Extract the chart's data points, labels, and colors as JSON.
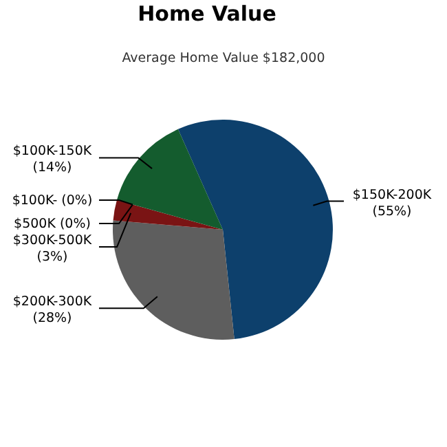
{
  "chart_data": {
    "type": "pie",
    "title": "Home Value",
    "subtitle": "Average Home Value  $182,000",
    "categories": [
      "$150K-200K",
      "$200K-300K",
      "$300K-500K",
      "$500K",
      "$100K-",
      "$100K-150K"
    ],
    "values": [
      55,
      28,
      3,
      0,
      0,
      14
    ],
    "value_labels": [
      "(55%)",
      "(28%)",
      "(3%)",
      "(0%)",
      "(0%)",
      "(14%)"
    ],
    "colors": [
      "#0d406c",
      "#5e5e5e",
      "#7a1414",
      "#8a8a8a",
      "#2a6aa0",
      "#145c2e"
    ]
  }
}
